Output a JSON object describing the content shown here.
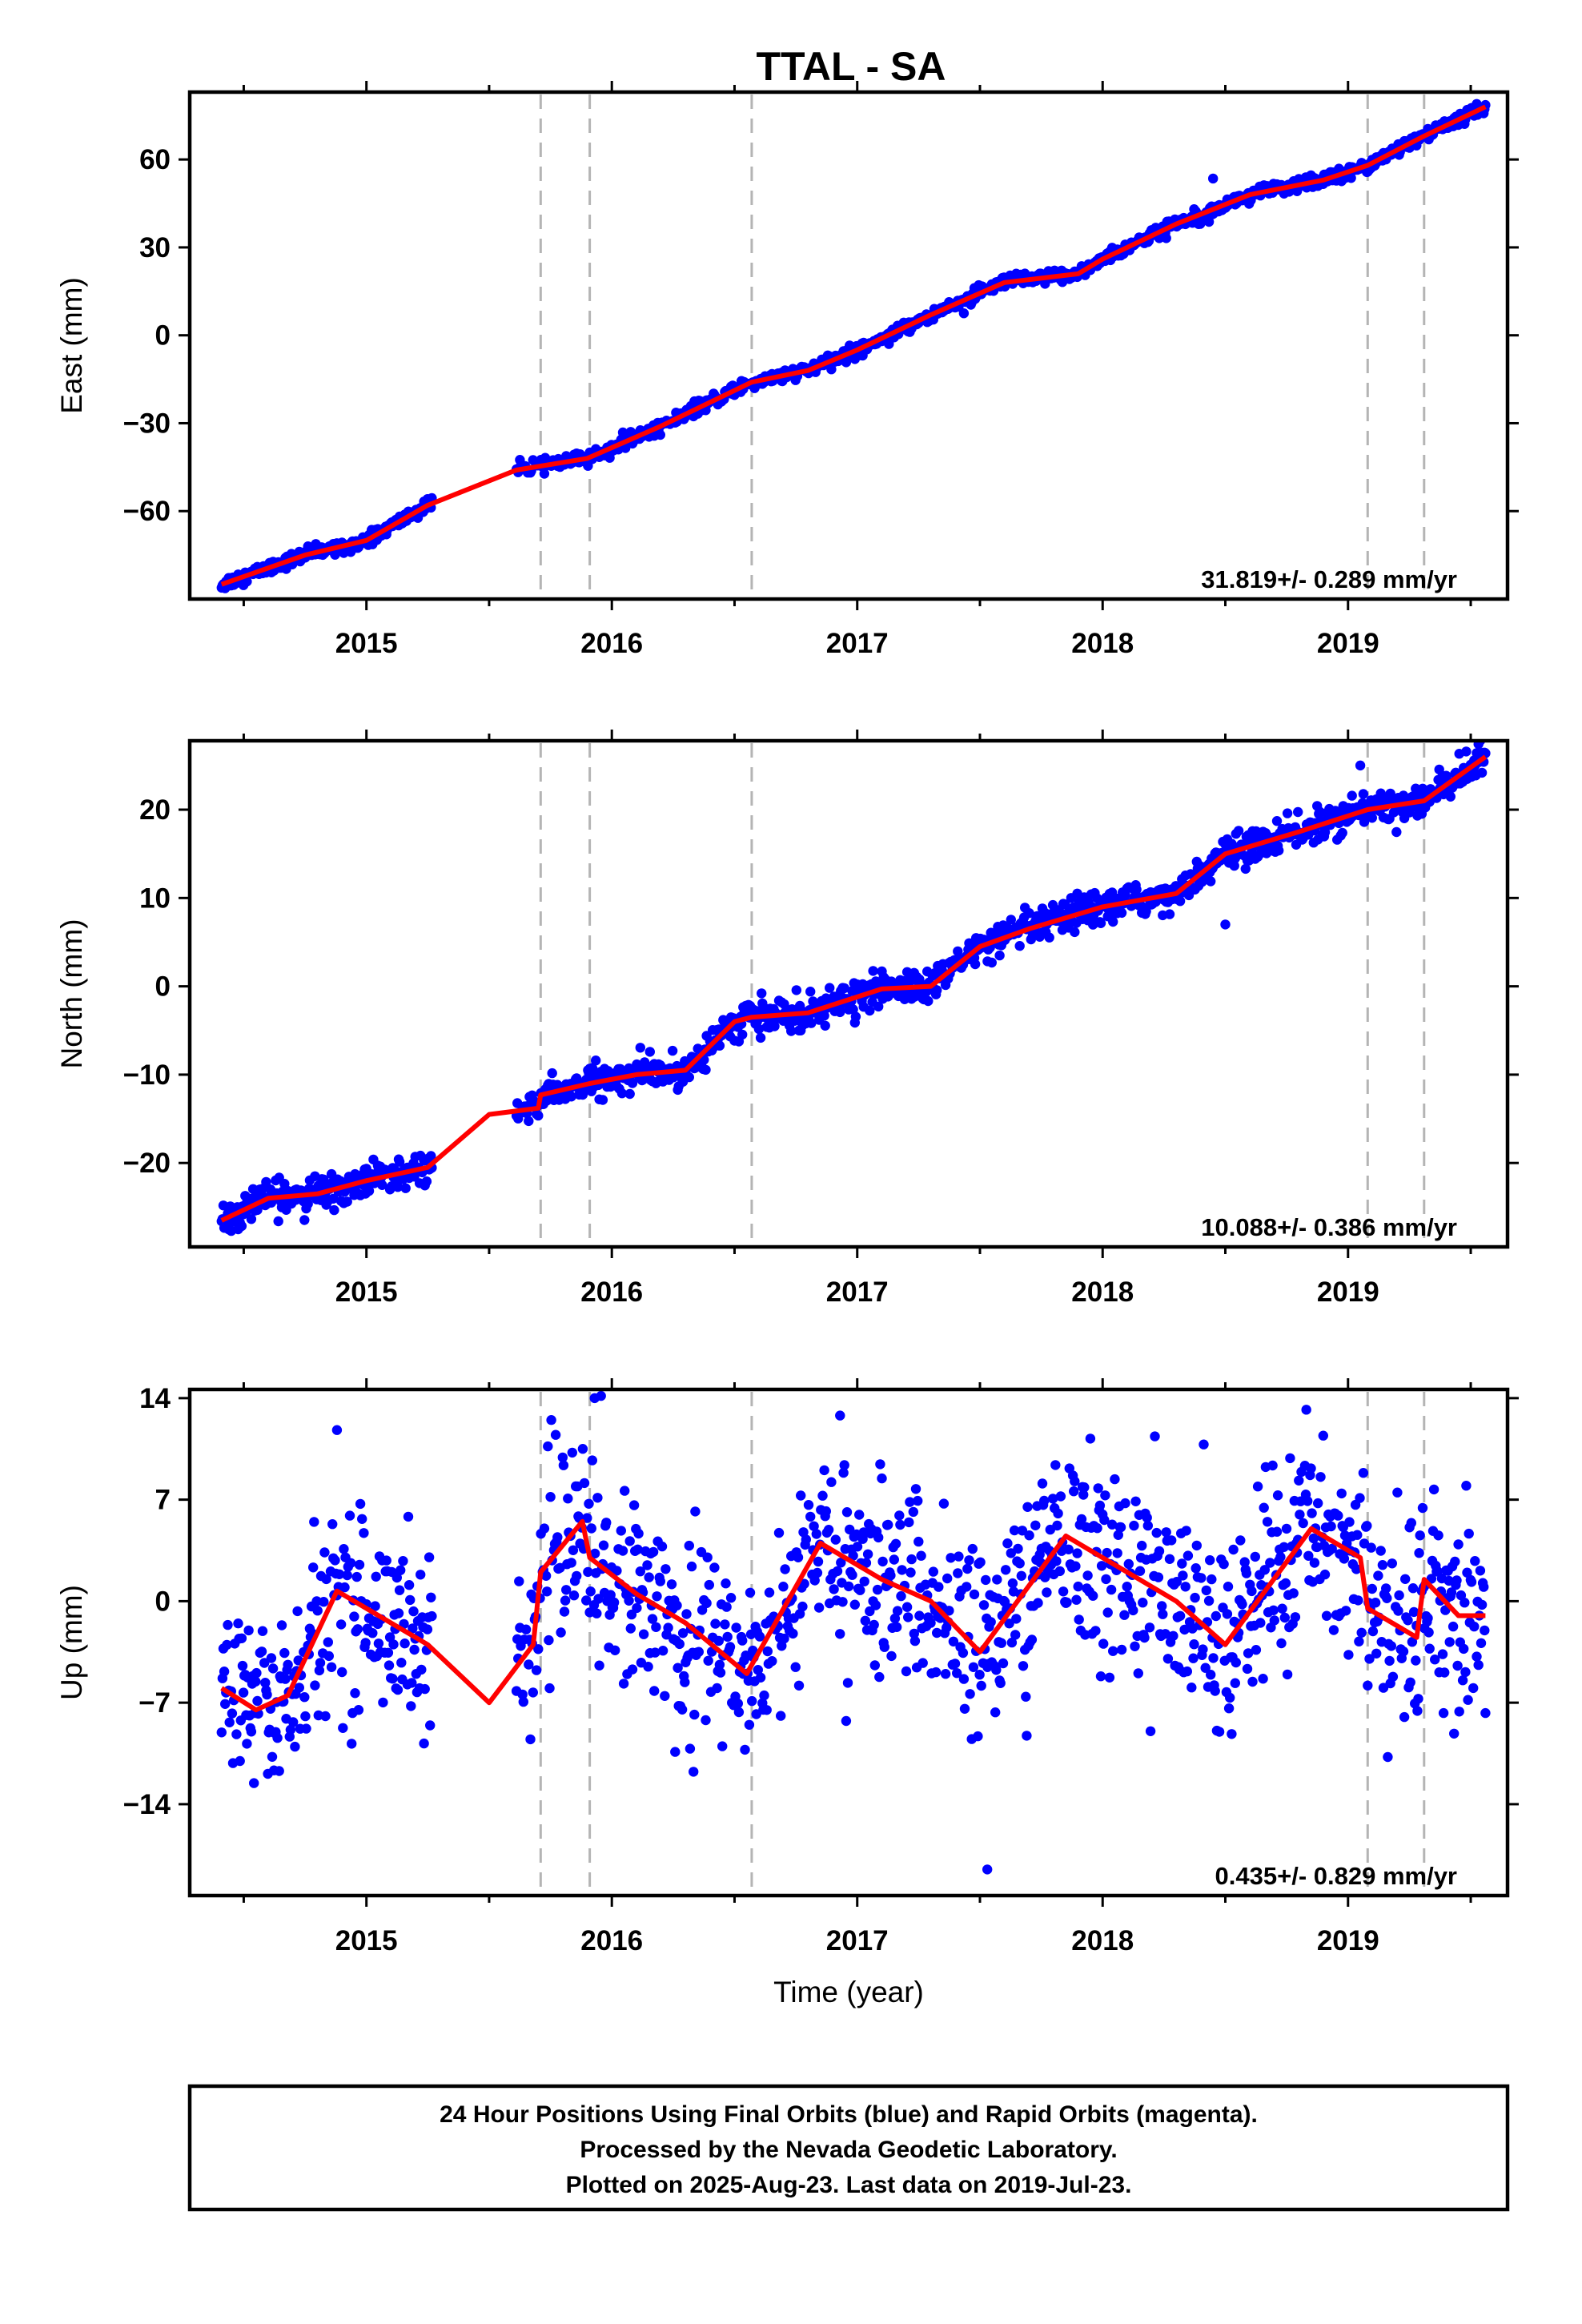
{
  "chart_data": {
    "title": "TTAL - SA",
    "x_axis": {
      "label": "Time (year)",
      "range": [
        2014.28,
        2019.65
      ],
      "tick_values": [
        2015,
        2016,
        2017,
        2018,
        2019
      ],
      "tick_labels": [
        "2015",
        "2016",
        "2017",
        "2018",
        "2019"
      ]
    },
    "event_lines_year": [
      2015.71,
      2015.91,
      2016.57,
      2019.08,
      2019.31
    ],
    "colors": {
      "points": "#0000ff",
      "fit": "#ff0000",
      "event_lines": "#b4b4b4"
    },
    "data_span_year": [
      2014.41,
      2019.56
    ],
    "gap_year": [
      2015.27,
      2015.61
    ],
    "panels": [
      {
        "id": "east",
        "type": "scatter",
        "ylabel": "East (mm)",
        "ylim": [
          -90,
          83
        ],
        "yticks": [
          60,
          30,
          0,
          -30,
          -60
        ],
        "ytick_labels": [
          "60",
          "30",
          "0",
          "−30",
          "−60"
        ],
        "rate_text": "31.819+/- 0.289 mm/yr",
        "noise": 1.1,
        "outliers": [
          {
            "x": 2018.45,
            "y": 53.5
          }
        ],
        "fit": [
          {
            "x": 2014.41,
            "y": -85
          },
          {
            "x": 2014.75,
            "y": -75
          },
          {
            "x": 2015.0,
            "y": -70
          },
          {
            "x": 2015.25,
            "y": -58
          },
          {
            "x": 2015.61,
            "y": -46
          },
          {
            "x": 2015.9,
            "y": -42
          },
          {
            "x": 2016.2,
            "y": -31
          },
          {
            "x": 2016.57,
            "y": -16
          },
          {
            "x": 2016.8,
            "y": -12
          },
          {
            "x": 2017.0,
            "y": -5
          },
          {
            "x": 2017.3,
            "y": 7
          },
          {
            "x": 2017.6,
            "y": 18
          },
          {
            "x": 2017.9,
            "y": 21
          },
          {
            "x": 2018.0,
            "y": 26
          },
          {
            "x": 2018.3,
            "y": 38
          },
          {
            "x": 2018.6,
            "y": 48
          },
          {
            "x": 2018.9,
            "y": 53
          },
          {
            "x": 2019.08,
            "y": 58
          },
          {
            "x": 2019.31,
            "y": 68
          },
          {
            "x": 2019.56,
            "y": 78
          }
        ]
      },
      {
        "id": "north",
        "type": "scatter",
        "ylabel": "North (mm)",
        "ylim": [
          -29.5,
          27.8
        ],
        "yticks": [
          20,
          10,
          0,
          -10,
          -20
        ],
        "ytick_labels": [
          "20",
          "10",
          "0",
          "−10",
          "−20"
        ],
        "rate_text": "10.088+/- 0.386 mm/yr",
        "noise": 0.9,
        "outliers": [
          {
            "x": 2018.5,
            "y": 7
          },
          {
            "x": 2019.05,
            "y": 25
          }
        ],
        "fit": [
          {
            "x": 2014.41,
            "y": -26.5
          },
          {
            "x": 2014.6,
            "y": -24
          },
          {
            "x": 2014.8,
            "y": -23.5
          },
          {
            "x": 2015.0,
            "y": -22
          },
          {
            "x": 2015.25,
            "y": -20.5
          },
          {
            "x": 2015.5,
            "y": -14.5
          },
          {
            "x": 2015.7,
            "y": -13.8
          },
          {
            "x": 2015.71,
            "y": -12.3
          },
          {
            "x": 2015.91,
            "y": -11
          },
          {
            "x": 2016.1,
            "y": -10
          },
          {
            "x": 2016.3,
            "y": -9.5
          },
          {
            "x": 2016.5,
            "y": -4
          },
          {
            "x": 2016.57,
            "y": -3.5
          },
          {
            "x": 2016.8,
            "y": -3
          },
          {
            "x": 2017.1,
            "y": -0.3
          },
          {
            "x": 2017.3,
            "y": 0
          },
          {
            "x": 2017.5,
            "y": 4.5
          },
          {
            "x": 2017.7,
            "y": 6.5
          },
          {
            "x": 2018.0,
            "y": 9
          },
          {
            "x": 2018.3,
            "y": 10.5
          },
          {
            "x": 2018.5,
            "y": 15
          },
          {
            "x": 2018.8,
            "y": 17.5
          },
          {
            "x": 2019.08,
            "y": 20
          },
          {
            "x": 2019.31,
            "y": 21
          },
          {
            "x": 2019.56,
            "y": 26
          }
        ]
      },
      {
        "id": "up",
        "type": "scatter",
        "ylabel": "Up (mm)",
        "ylim": [
          -20.3,
          14.6
        ],
        "yticks": [
          14,
          7,
          0,
          -7,
          -14
        ],
        "ytick_labels": [
          "14",
          "7",
          "0",
          "−7",
          "−14"
        ],
        "rate_text": "0.435+/- 0.829 mm/yr",
        "noise": 3.3,
        "outliers": [
          {
            "x": 2017.53,
            "y": -18.5
          },
          {
            "x": 2015.93,
            "y": 14
          },
          {
            "x": 2014.88,
            "y": 11.8
          },
          {
            "x": 2018.83,
            "y": 13.2
          },
          {
            "x": 2016.93,
            "y": 12.8
          }
        ],
        "fit": [
          {
            "x": 2014.41,
            "y": -6
          },
          {
            "x": 2014.55,
            "y": -7.5
          },
          {
            "x": 2014.68,
            "y": -6.5
          },
          {
            "x": 2014.88,
            "y": 0.7
          },
          {
            "x": 2015.05,
            "y": -1
          },
          {
            "x": 2015.25,
            "y": -3
          },
          {
            "x": 2015.5,
            "y": -7
          },
          {
            "x": 2015.68,
            "y": -3
          },
          {
            "x": 2015.71,
            "y": 2
          },
          {
            "x": 2015.88,
            "y": 5.5
          },
          {
            "x": 2015.91,
            "y": 3
          },
          {
            "x": 2016.1,
            "y": 0.5
          },
          {
            "x": 2016.3,
            "y": -1.5
          },
          {
            "x": 2016.55,
            "y": -5
          },
          {
            "x": 2016.85,
            "y": 4
          },
          {
            "x": 2017.1,
            "y": 1.5
          },
          {
            "x": 2017.3,
            "y": 0
          },
          {
            "x": 2017.5,
            "y": -3.5
          },
          {
            "x": 2017.85,
            "y": 4.5
          },
          {
            "x": 2018.1,
            "y": 2
          },
          {
            "x": 2018.3,
            "y": 0
          },
          {
            "x": 2018.5,
            "y": -3
          },
          {
            "x": 2018.85,
            "y": 5
          },
          {
            "x": 2019.05,
            "y": 3
          },
          {
            "x": 2019.08,
            "y": -0.5
          },
          {
            "x": 2019.28,
            "y": -2.5
          },
          {
            "x": 2019.31,
            "y": 1.5
          },
          {
            "x": 2019.45,
            "y": -1
          },
          {
            "x": 2019.56,
            "y": -1
          }
        ]
      }
    ]
  },
  "footer": {
    "line1": "24 Hour Positions Using Final Orbits (blue) and Rapid Orbits (magenta).",
    "line2": "Processed by the Nevada Geodetic Laboratory.",
    "line3": "Plotted on 2025-Aug-23. Last data on 2019-Jul-23."
  }
}
